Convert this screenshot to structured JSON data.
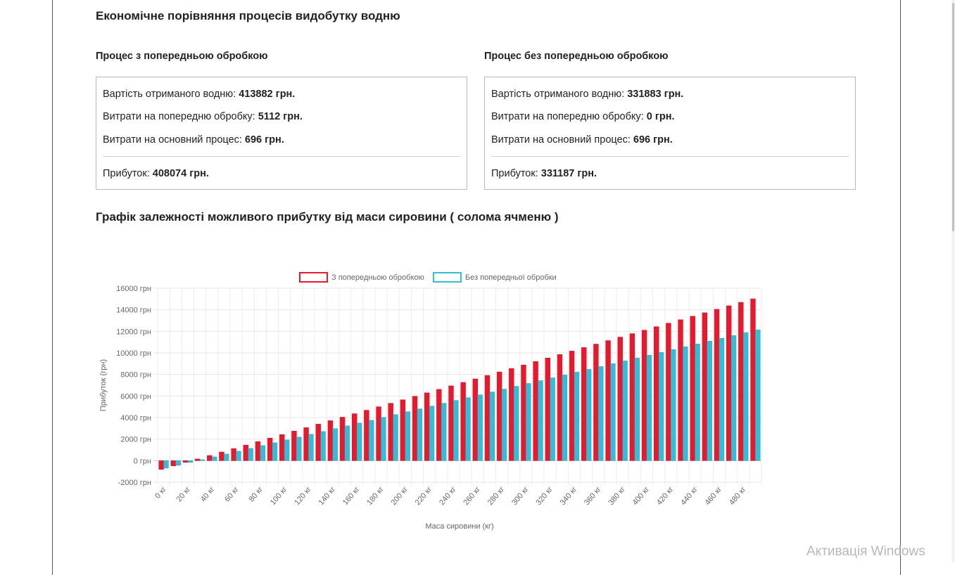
{
  "page": {
    "title": "Економічне порівняння процесів видобутку водню"
  },
  "with_pretreatment": {
    "heading": "Процес з попередньою обробкою",
    "hydrogen_value_label": "Вартість отриманого водню:",
    "hydrogen_value": "413882 грн.",
    "pretreatment_cost_label": "Витрати на попередню обробку:",
    "pretreatment_cost": "5112 грн.",
    "main_process_cost_label": "Витрати на основний процес:",
    "main_process_cost": "696 грн.",
    "profit_label": "Прибуток:",
    "profit": "408074 грн."
  },
  "without_pretreatment": {
    "heading": "Процес без попередньою обробкою",
    "hydrogen_value_label": "Вартість отриманого водню:",
    "hydrogen_value": "331883 грн.",
    "pretreatment_cost_label": "Витрати на попередню обробку:",
    "pretreatment_cost": "0 грн.",
    "main_process_cost_label": "Витрати на основний процес:",
    "main_process_cost": "696 грн.",
    "profit_label": "Прибуток:",
    "profit": "331187 грн."
  },
  "chart_heading": "Графік залежності можливого прибутку від маси сировини ( солома ячменю )",
  "chart_data": {
    "type": "bar",
    "xlabel": "Маса сировини (кг)",
    "ylabel": "Прибуток (грн)",
    "ylim": [
      -2000,
      16000
    ],
    "y_ticks": [
      -2000,
      0,
      2000,
      4000,
      6000,
      8000,
      10000,
      12000,
      14000,
      16000
    ],
    "y_tick_suffix": " грн",
    "x_tick_suffix": " кг",
    "x_start": 0,
    "x_step": 10,
    "x_count": 50,
    "x_label_every": 2,
    "grid": true,
    "legend_position": "top",
    "series": [
      {
        "name": "З попередньою обробкою",
        "color": "#e8192c",
        "border": "#c8102e",
        "values": [
          -811,
          -488,
          -165,
          158,
          481,
          804,
          1127,
          1450,
          1773,
          2096,
          2419,
          2742,
          3065,
          3388,
          3711,
          4034,
          4357,
          4680,
          5003,
          5326,
          5649,
          5972,
          6295,
          6618,
          6941,
          7264,
          7587,
          7910,
          8233,
          8556,
          8879,
          9202,
          9525,
          9848,
          10171,
          10494,
          10817,
          11140,
          11463,
          11786,
          12109,
          12432,
          12755,
          13078,
          13401,
          13724,
          14047,
          14370,
          14693,
          15016
        ]
      },
      {
        "name": "Без попередньої обробки",
        "color": "#36bcd6",
        "border": "#2aa9c2",
        "values": [
          -696,
          -434,
          -172,
          90,
          352,
          614,
          876,
          1138,
          1400,
          1662,
          1924,
          2186,
          2448,
          2710,
          2972,
          3234,
          3496,
          3758,
          4020,
          4282,
          4544,
          4806,
          5068,
          5330,
          5592,
          5854,
          6116,
          6378,
          6640,
          6902,
          7164,
          7426,
          7688,
          7950,
          8212,
          8474,
          8736,
          8998,
          9260,
          9522,
          9784,
          10046,
          10308,
          10570,
          10832,
          11094,
          11356,
          11618,
          11880,
          12142
        ]
      }
    ]
  },
  "watermark": "Активація Windows"
}
